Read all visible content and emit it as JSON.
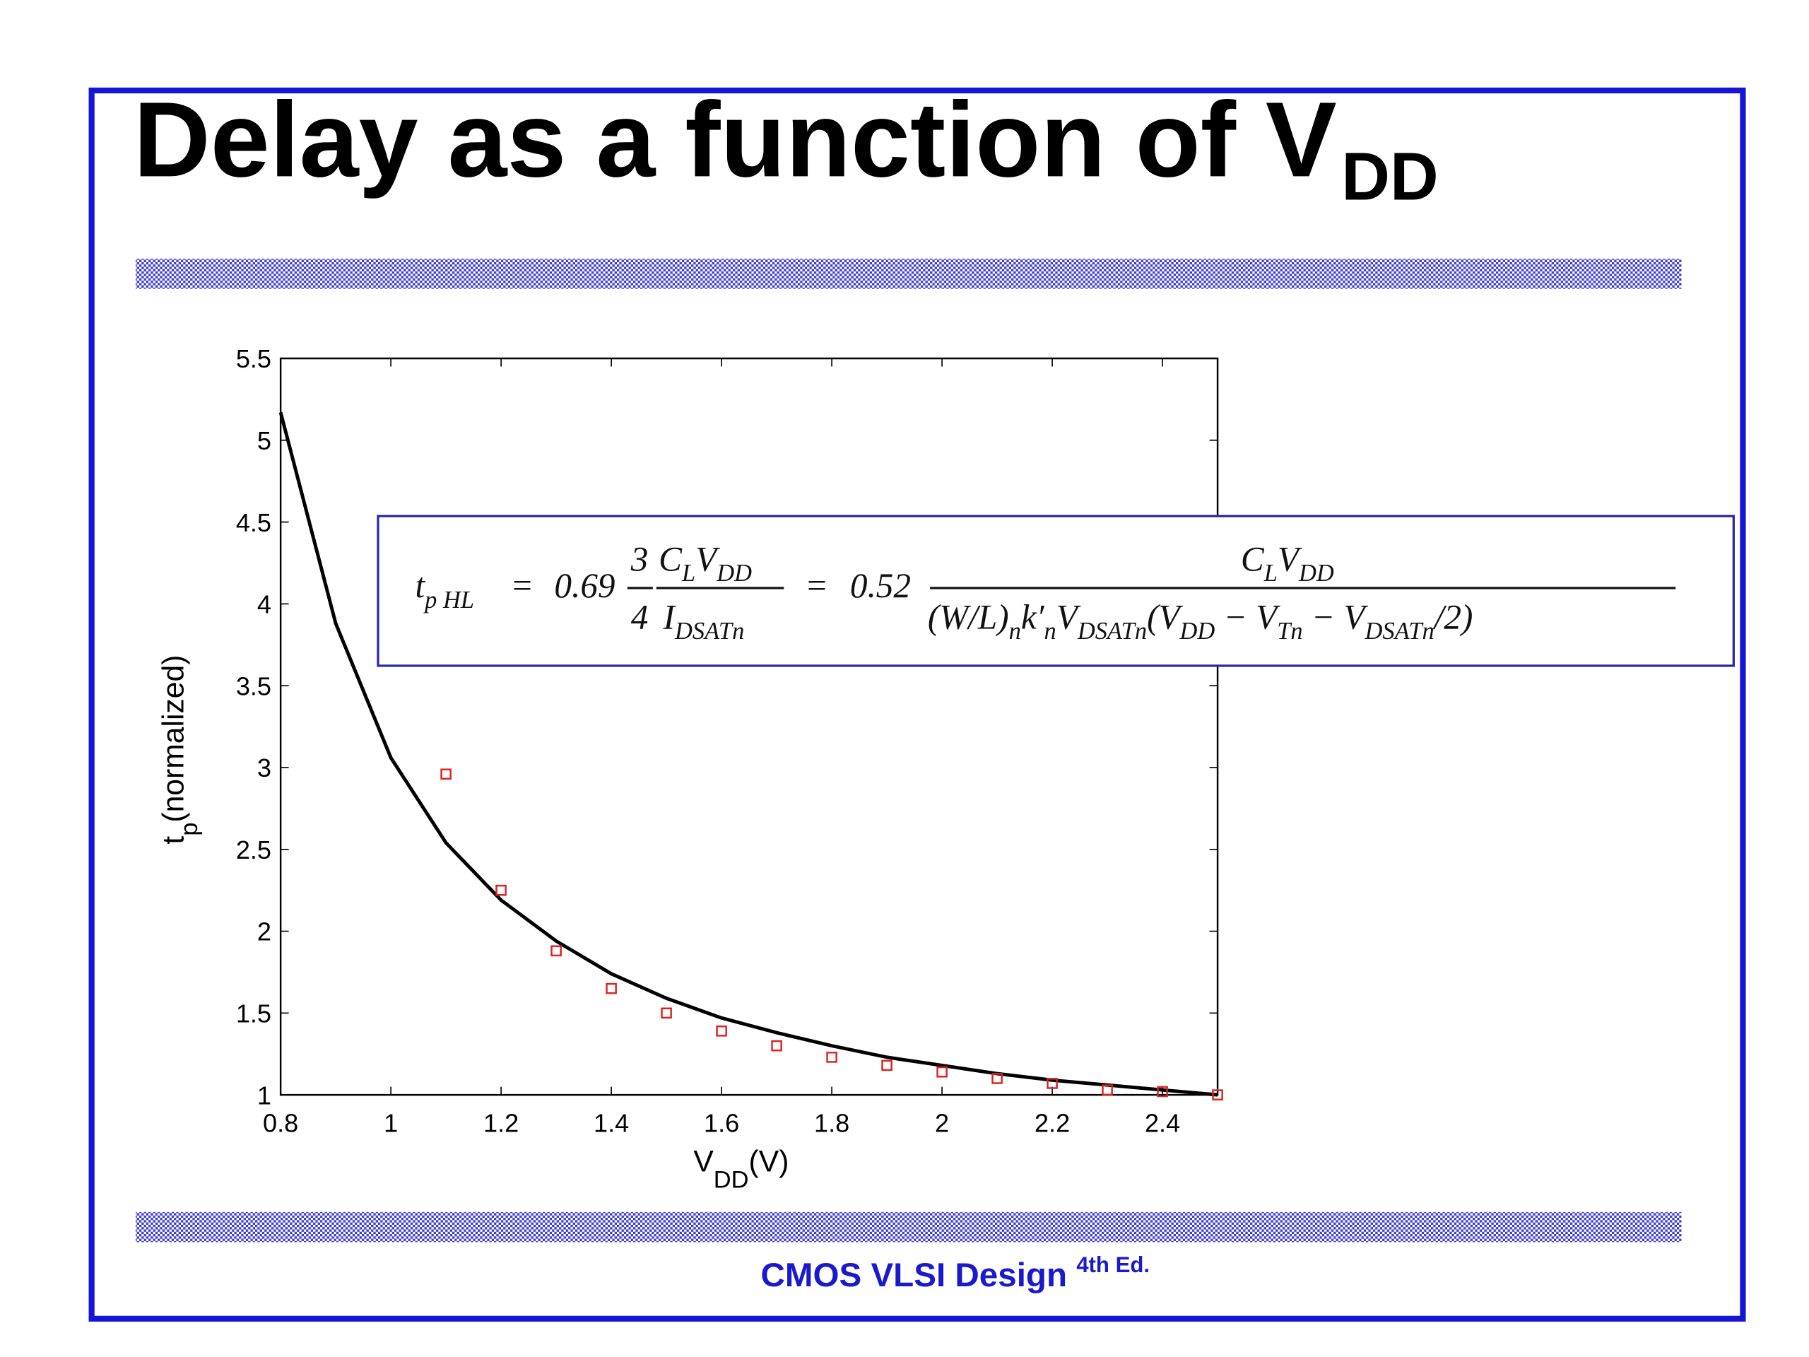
{
  "slide": {
    "title": "Delay as a function of V",
    "title_sub": "DD",
    "footer": "CMOS VLSI Design",
    "footer_sup": "4th Ed."
  },
  "chart_data": {
    "type": "line",
    "xlabel": [
      "V",
      "DD",
      "(V)"
    ],
    "ylabel": [
      "t",
      "p",
      "(normalized)"
    ],
    "xlim": [
      0.8,
      2.5
    ],
    "ylim": [
      1,
      5.5
    ],
    "xticks": [
      0.8,
      1,
      1.2,
      1.4,
      1.6,
      1.8,
      2,
      2.2,
      2.4
    ],
    "yticks": [
      1,
      1.5,
      2,
      2.5,
      3,
      3.5,
      4,
      4.5,
      5,
      5.5
    ],
    "series": [
      {
        "type": "line",
        "color": "#000000",
        "x": [
          0.8,
          0.9,
          1.0,
          1.1,
          1.2,
          1.3,
          1.4,
          1.5,
          1.6,
          1.7,
          1.8,
          1.9,
          2.0,
          2.1,
          2.2,
          2.3,
          2.4,
          2.5
        ],
        "values": [
          5.17,
          3.88,
          3.06,
          2.54,
          2.19,
          1.94,
          1.74,
          1.59,
          1.47,
          1.38,
          1.3,
          1.23,
          1.18,
          1.13,
          1.09,
          1.06,
          1.03,
          1.0
        ]
      },
      {
        "type": "scatter",
        "color": "#dd2222",
        "x": [
          1.1,
          1.2,
          1.3,
          1.4,
          1.5,
          1.6,
          1.7,
          1.8,
          1.9,
          2.0,
          2.1,
          2.2,
          2.3,
          2.4,
          2.5
        ],
        "values": [
          2.96,
          2.25,
          1.88,
          1.65,
          1.5,
          1.39,
          1.3,
          1.23,
          1.18,
          1.14,
          1.1,
          1.07,
          1.03,
          1.02,
          1.0
        ]
      }
    ],
    "equation": {
      "lhs": [
        [
          "t",
          "p HL"
        ]
      ],
      "eq1": "=",
      "k1": "0.69",
      "frac1": {
        "num": [
          [
            "3"
          ]
        ],
        "den": [
          [
            "4"
          ]
        ]
      },
      "frac2": {
        "num": [
          [
            "C",
            "L"
          ],
          [
            "V",
            "DD"
          ]
        ],
        "den": [
          [
            "I",
            "DSATn"
          ]
        ]
      },
      "eq2": "=",
      "k2": "0.52",
      "frac3": {
        "num": [
          [
            "C",
            "L"
          ],
          [
            "V",
            "DD"
          ]
        ],
        "den": [
          [
            "(W/L)",
            "n"
          ],
          [
            "k′",
            "n"
          ],
          [
            "V",
            "DSATn"
          ],
          [
            "(V",
            "DD"
          ],
          [
            " − V",
            "Tn"
          ],
          [
            " − V",
            "DSATn"
          ],
          [
            "/2)"
          ]
        ]
      }
    }
  }
}
